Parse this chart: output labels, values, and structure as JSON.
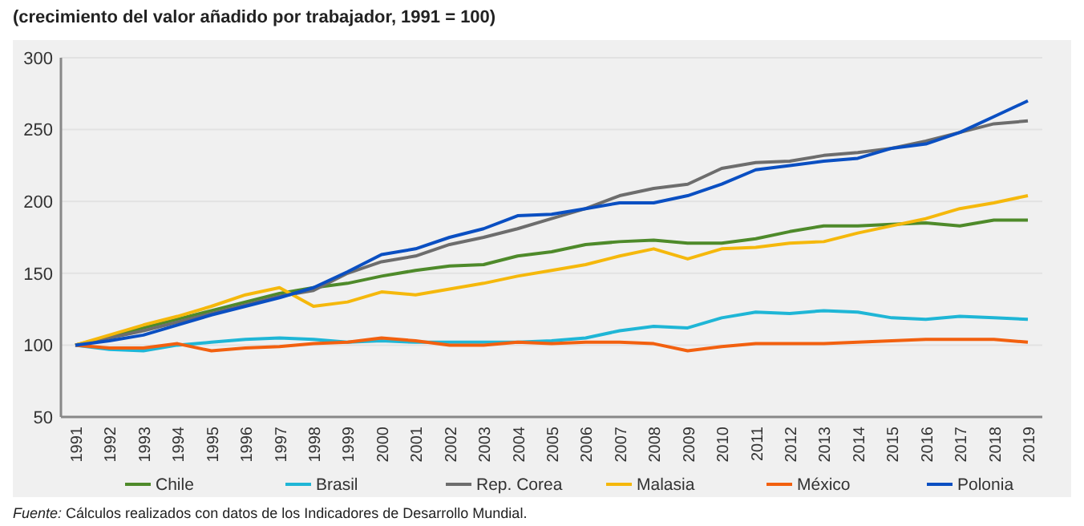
{
  "chart_data": {
    "type": "line",
    "title": "(crecimiento del valor añadido por trabajador, 1991 = 100)",
    "categories": [
      "1991",
      "1992",
      "1993",
      "1994",
      "1995",
      "1996",
      "1997",
      "1998",
      "1999",
      "2000",
      "2001",
      "2002",
      "2003",
      "2004",
      "2005",
      "2006",
      "2007",
      "2008",
      "2009",
      "2010",
      "2011",
      "2012",
      "2013",
      "2014",
      "2015",
      "2016",
      "2017",
      "2018",
      "2019"
    ],
    "series": [
      {
        "name": "Chile",
        "color": "#4e8a2a",
        "values": [
          100,
          106,
          112,
          118,
          124,
          130,
          136,
          140,
          143,
          148,
          152,
          155,
          156,
          162,
          165,
          170,
          172,
          173,
          171,
          171,
          174,
          179,
          183,
          183,
          184,
          185,
          183,
          187,
          187
        ]
      },
      {
        "name": "Brasil",
        "color": "#1fb6d6",
        "values": [
          100,
          97,
          96,
          100,
          102,
          104,
          105,
          104,
          102,
          103,
          102,
          102,
          102,
          102,
          103,
          105,
          110,
          113,
          112,
          119,
          123,
          122,
          124,
          123,
          119,
          118,
          120,
          119,
          118
        ]
      },
      {
        "name": "Rep. Corea",
        "color": "#6d6d6d",
        "values": [
          100,
          105,
          110,
          116,
          122,
          128,
          134,
          138,
          150,
          158,
          162,
          170,
          175,
          181,
          188,
          195,
          204,
          209,
          212,
          223,
          227,
          228,
          232,
          234,
          237,
          242,
          248,
          254,
          256
        ]
      },
      {
        "name": "Malasia",
        "color": "#f5b80c",
        "values": [
          100,
          107,
          114,
          120,
          127,
          135,
          140,
          127,
          130,
          137,
          135,
          139,
          143,
          148,
          152,
          156,
          162,
          167,
          160,
          167,
          168,
          171,
          172,
          178,
          183,
          188,
          195,
          199,
          204
        ]
      },
      {
        "name": "México",
        "color": "#f2600f",
        "values": [
          100,
          98,
          98,
          101,
          96,
          98,
          99,
          101,
          102,
          105,
          103,
          100,
          100,
          102,
          101,
          102,
          102,
          101,
          96,
          99,
          101,
          101,
          101,
          102,
          103,
          104,
          104,
          104,
          102
        ]
      },
      {
        "name": "Polonia",
        "color": "#0a4fc2",
        "values": [
          100,
          103,
          107,
          114,
          121,
          127,
          133,
          140,
          151,
          163,
          167,
          175,
          181,
          190,
          191,
          195,
          199,
          199,
          204,
          212,
          222,
          225,
          228,
          230,
          237,
          240,
          248,
          259,
          270
        ]
      }
    ],
    "ylim": [
      50,
      300
    ],
    "yticks": [
      50,
      100,
      150,
      200,
      250,
      300
    ],
    "grid": "y",
    "legend": "bottom",
    "line_style": "solid",
    "marker": "none",
    "annotations": [
      "Fuente: Cálculos realizados con datos de los Indicadores de Desarrollo Mundial."
    ]
  }
}
